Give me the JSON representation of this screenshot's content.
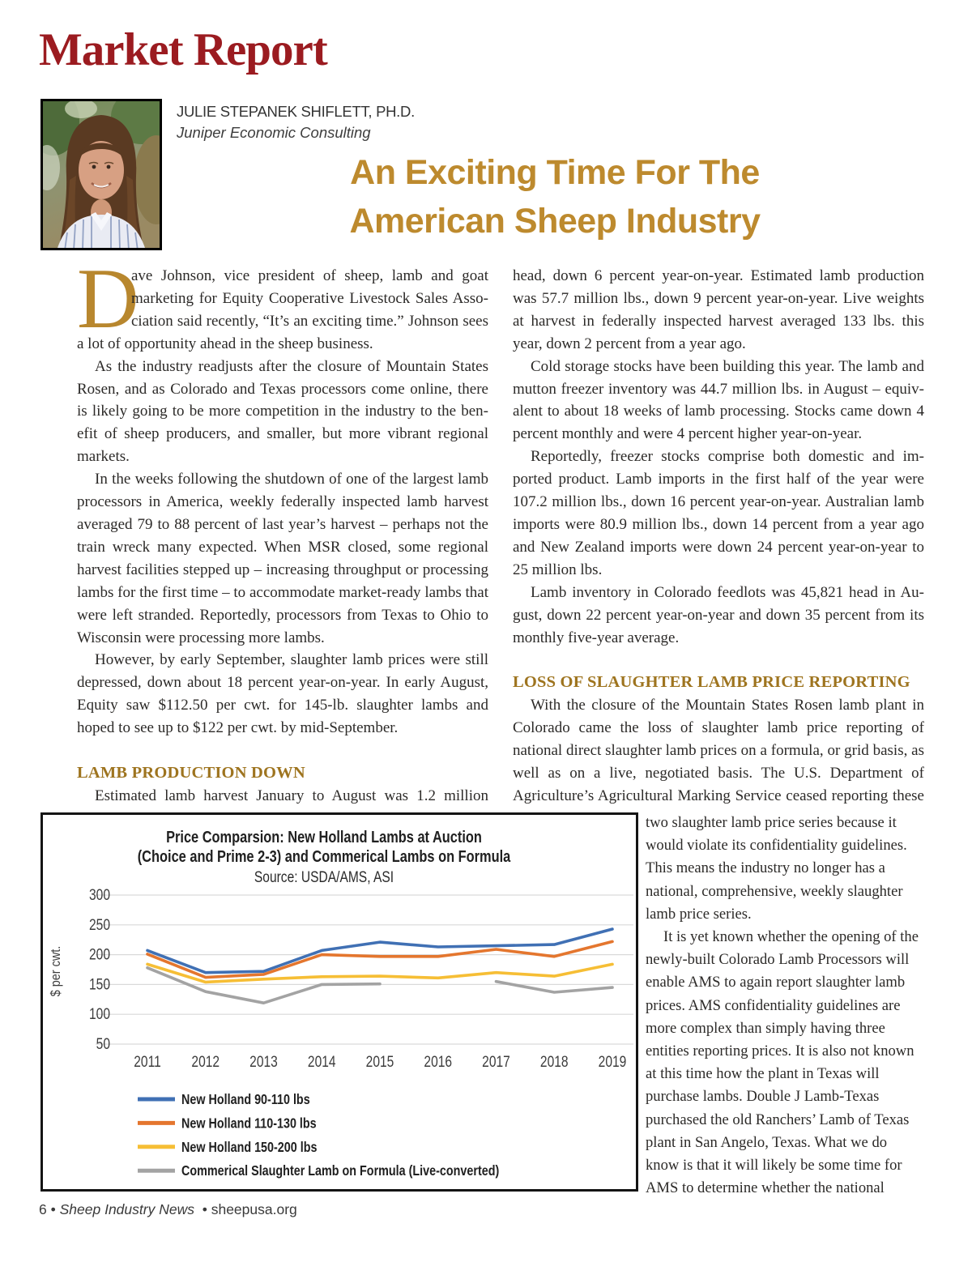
{
  "masthead": {
    "title": "Market Report"
  },
  "author": {
    "name": "JULIE STEPANEK SHIFLETT, PH.D.",
    "affiliation": "Juniper Economic Consulting",
    "photo": "julie-stepanek-shiflett-portrait"
  },
  "headline": {
    "line1": "An Exciting Time For The",
    "line2": "American Sheep Industry"
  },
  "article": {
    "dropcap": "D",
    "left_column": {
      "paragraphs": [
        "ave Johnson, vice president of sheep, lamb and goat marketing for Equity Cooperative Livestock Sales Asso­ciation said recently, “It’s an exciting time.” Johnson sees a lot of opportunity ahead in the sheep business.",
        "As the industry readjusts after the closure of Mountain States Rosen, and as Colorado and Texas processors come online, there is likely going to be more competition in the industry to the ben­efit of sheep producers, and smaller, but more vibrant regional markets.",
        "In the weeks following the shutdown of one of the largest lamb processors in America, weekly federally inspected lamb harvest averaged 79 to 88 percent of last year’s harvest – perhaps not the train wreck many expected. When MSR closed, some regional harvest facilities stepped up – increasing throughput or process­ing lambs for the first time – to accommodate market-ready lambs that were left stranded. Reportedly, processors from Texas to Ohio to Wisconsin were processing more lambs.",
        "However, by early September, slaughter lamb prices were still depressed, down about 18 percent year-on-year. In early August, Equity saw $112.50 per cwt. for 145-lb. slaughter lambs and hoped to see up to $122 per cwt. by mid-September."
      ],
      "heading": "LAMB PRODUCTION DOWN",
      "after_heading": "Estimated lamb harvest January to August was 1.2 million"
    },
    "right_column": {
      "paragraphs": [
        "head, down 6 percent year-on-year. Estimated lamb production was 57.7 million lbs., down 9 percent year-on-year. Live weights at harvest in federally inspected harvest averaged 133 lbs. this year, down 2 percent from a year ago.",
        "Cold storage stocks have been building this year. The lamb and mutton freezer inventory was 44.7 million lbs. in August – equiv­alent to about 18 weeks of lamb processing. Stocks came down 4 percent monthly and were 4 percent higher year-on-year.",
        "Reportedly, freezer stocks comprise both domestic and im­ported product. Lamb imports in the first half of the year were 107.2 million lbs., down 16 percent year-on-year. Australian lamb imports were 80.9 million lbs., down 14 percent from a year ago and New Zealand imports were down 24 percent year-on-year to 25 million lbs.",
        "Lamb inventory in Colorado feedlots was 45,821 head in Au­gust, down 22 percent year-on-year and down 35 percent from its monthly five-year average."
      ],
      "heading": "LOSS OF SLAUGHTER LAMB PRICE REPORTING",
      "after_heading_wide": "With the closure of the Mountain States Rosen lamb plant in Colorado came the loss of slaughter lamb price reporting of national direct slaughter lamb prices on a formula, or grid basis, as well as on a live, negotiated basis. The U.S. Department of Agriculture’s Agricultural Marking Service ceased reporting these"
    },
    "wrap_column": {
      "continuation": "two slaughter lamb price series because it would violate its confidentiality guidelines. This means the industry no longer has a national, comprehensive, weekly slaughter lamb price series.",
      "paragraph": "It is yet known whether the opening of the newly-built Colorado Lamb Processors will enable AMS to again report slaughter lamb prices. AMS confidentiality guide­lines are more complex than simply having three entities reporting prices. It is also not known at this time how the plant in Texas will purchase lambs. Double J Lamb-Texas purchased the old Ranchers’ Lamb of Texas plant in San Angelo, Texas. What we do know is that it will likely be some time for AMS to determine whether the national"
    }
  },
  "footer": {
    "page_number": "6",
    "separator": "•",
    "publication": "Sheep Industry News",
    "website": "sheepusa.org"
  },
  "colors": {
    "masthead_red": "#9b1b20",
    "headline_gold": "#bd8a2e",
    "section_heading_gold": "#9e741f",
    "body_text": "#2c2a28",
    "series_blue": "#4070b4",
    "series_orange": "#e4762e",
    "series_yellow": "#f6be35",
    "series_gray": "#a3a3a3"
  },
  "chart_data": {
    "type": "line",
    "title_line1": "Price Comparsion: New Holland Lambs at Auction",
    "title_line2": "(Choice and Prime 2-3) and Commerical Lambs on Formula",
    "source": "Source: USDA/AMS, ASI",
    "ylabel": "$ per cwt.",
    "x": [
      2011,
      2012,
      2013,
      2014,
      2015,
      2016,
      2017,
      2018,
      2019
    ],
    "yticks": [
      50,
      100,
      150,
      200,
      250,
      300
    ],
    "ylim": [
      50,
      300
    ],
    "grid": true,
    "legend_position": "bottom-left",
    "series": [
      {
        "name": "New Holland 90-110 lbs",
        "color": "#4070b4",
        "values": [
          207,
          170,
          172,
          207,
          221,
          213,
          215,
          217,
          243
        ]
      },
      {
        "name": "New Holland 110-130 lbs",
        "color": "#e4762e",
        "values": [
          201,
          162,
          167,
          200,
          197,
          197,
          209,
          197,
          222
        ]
      },
      {
        "name": "New Holland 150-200 lbs",
        "color": "#f6be35",
        "values": [
          184,
          154,
          159,
          163,
          164,
          161,
          170,
          164,
          184
        ]
      },
      {
        "name": "Commerical Slaughter Lamb on Formula (Live-converted)",
        "color": "#a3a3a3",
        "values": [
          178,
          138,
          119,
          150,
          151,
          null,
          155,
          137,
          145
        ]
      }
    ]
  }
}
